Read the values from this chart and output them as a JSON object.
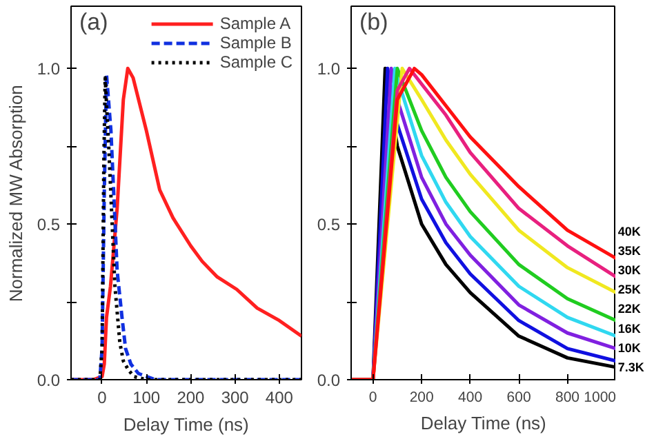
{
  "chart_data": [
    {
      "type": "line",
      "annotations": [
        "(a)"
      ],
      "xlabel": "Delay Time (ns)",
      "ylabel": "Normalized MW Absorption",
      "xlim": [
        -70,
        450
      ],
      "xticks": [
        0,
        100,
        200,
        300,
        400
      ],
      "ylim": [
        0,
        1.2
      ],
      "yticks": [
        {
          "value": 0,
          "label": "0.0"
        },
        {
          "value": 0.25,
          "label": null
        },
        0.5,
        {
          "value": 0.75,
          "label": null
        },
        {
          "value": 1,
          "label": "1.0"
        }
      ],
      "legend": "top right",
      "grid": false,
      "series": [
        {
          "name": "Sample A",
          "color": "#ff2020",
          "line_style": "solid",
          "x": [
            -70,
            -20,
            0,
            5,
            10,
            19,
            34,
            48,
            58,
            70,
            100,
            130,
            160,
            200,
            226,
            260,
            304,
            350,
            400,
            450
          ],
          "values": [
            0,
            0,
            0.01,
            0.05,
            0.2,
            0.3,
            0.55,
            0.9,
            1.0,
            0.97,
            0.8,
            0.61,
            0.52,
            0.43,
            0.38,
            0.33,
            0.29,
            0.23,
            0.19,
            0.14
          ]
        },
        {
          "name": "Sample B",
          "color": "#1030e0",
          "line_style": "dashed",
          "x": [
            -70,
            -5,
            0,
            5,
            10,
            20,
            34,
            45,
            53,
            65,
            82,
            100,
            120,
            200,
            300,
            450
          ],
          "values": [
            0,
            0,
            0.1,
            0.6,
            0.98,
            0.8,
            0.35,
            0.2,
            0.1,
            0.05,
            0.02,
            0.01,
            0,
            0,
            0,
            0
          ]
        },
        {
          "name": "Sample C",
          "color": "#000000",
          "line_style": "dotted",
          "x": [
            -70,
            -5,
            0,
            4,
            7,
            15,
            29,
            40,
            48,
            60,
            72,
            100,
            200,
            300,
            450
          ],
          "values": [
            0,
            0,
            0.1,
            0.7,
            0.97,
            0.75,
            0.3,
            0.12,
            0.06,
            0.03,
            0.01,
            0,
            0,
            0,
            0
          ]
        }
      ]
    },
    {
      "type": "line",
      "annotations": [
        "(b)"
      ],
      "xlabel": "Delay Time (ns)",
      "xlim": [
        -90,
        1000
      ],
      "xticks": [
        0,
        200,
        400,
        600,
        800,
        1000
      ],
      "ylim": [
        0,
        1.2
      ],
      "yticks": [
        {
          "value": 0,
          "label": "0.0"
        },
        {
          "value": 0.25,
          "label": null
        },
        0.5,
        {
          "value": 0.75,
          "label": null
        },
        {
          "value": 1,
          "label": "1.0"
        }
      ],
      "legend": false,
      "grid": false,
      "series": [
        {
          "name": "7.3K",
          "color": "#000000",
          "x": [
            -90,
            0,
            50,
            100,
            200,
            300,
            400,
            600,
            800,
            1000
          ],
          "values": [
            0,
            0,
            1.0,
            0.75,
            0.5,
            0.37,
            0.28,
            0.14,
            0.07,
            0.04
          ]
        },
        {
          "name": "10K",
          "color": "#1010e0",
          "x": [
            -90,
            0,
            60,
            100,
            200,
            300,
            400,
            600,
            800,
            1000
          ],
          "values": [
            0,
            0,
            1.0,
            0.82,
            0.58,
            0.44,
            0.34,
            0.19,
            0.1,
            0.06
          ]
        },
        {
          "name": "16K",
          "color": "#8020e0",
          "x": [
            -90,
            0,
            75,
            100,
            200,
            300,
            400,
            600,
            800,
            1000
          ],
          "values": [
            0,
            0,
            1.0,
            0.9,
            0.65,
            0.5,
            0.4,
            0.24,
            0.15,
            0.1
          ]
        },
        {
          "name": "22K",
          "color": "#30d8f0",
          "x": [
            -90,
            0,
            90,
            100,
            200,
            300,
            400,
            600,
            800,
            1000
          ],
          "values": [
            0,
            0,
            1.0,
            0.97,
            0.72,
            0.57,
            0.46,
            0.3,
            0.2,
            0.14
          ]
        },
        {
          "name": "25K",
          "color": "#20cc20",
          "x": [
            -90,
            0,
            100,
            200,
            300,
            400,
            600,
            800,
            1000
          ],
          "values": [
            0,
            0,
            1.0,
            0.8,
            0.65,
            0.54,
            0.37,
            0.26,
            0.19
          ]
        },
        {
          "name": "30K",
          "color": "#f0e820",
          "x": [
            -90,
            0,
            120,
            200,
            300,
            400,
            600,
            800,
            1000
          ],
          "values": [
            0,
            0,
            1.0,
            0.9,
            0.77,
            0.66,
            0.48,
            0.36,
            0.28
          ]
        },
        {
          "name": "35K",
          "color": "#e8207f",
          "x": [
            -90,
            0,
            100,
            150,
            200,
            300,
            400,
            600,
            800,
            1000
          ],
          "values": [
            0,
            0,
            0.93,
            1.0,
            0.95,
            0.85,
            0.73,
            0.55,
            0.43,
            0.33
          ]
        },
        {
          "name": "40K",
          "color": "#ff1010",
          "x": [
            -90,
            0,
            100,
            170,
            200,
            300,
            400,
            600,
            800,
            1000
          ],
          "values": [
            0,
            0,
            0.9,
            1.0,
            0.98,
            0.88,
            0.78,
            0.62,
            0.48,
            0.39
          ]
        }
      ]
    }
  ]
}
